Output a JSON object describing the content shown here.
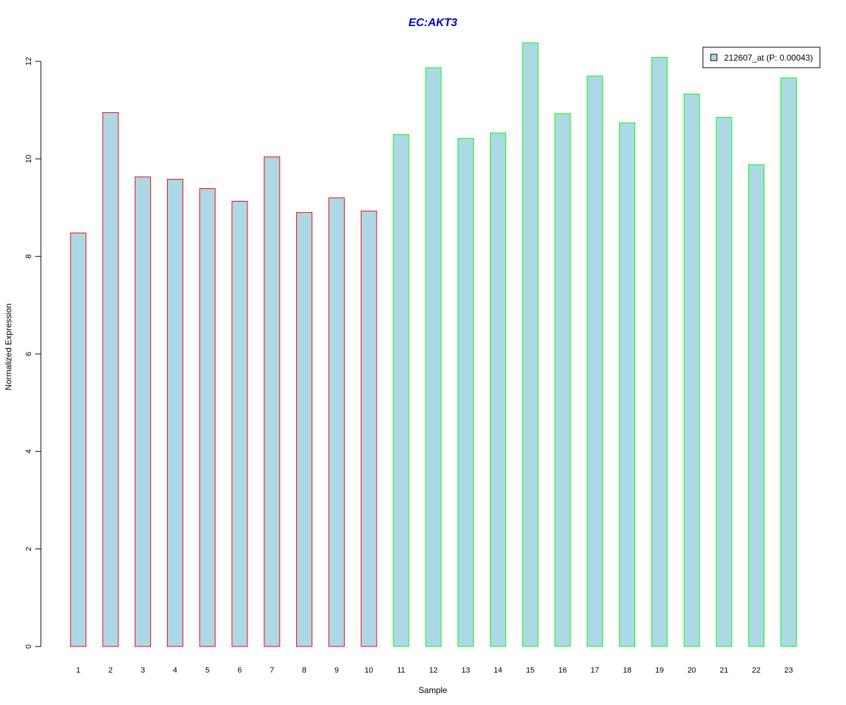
{
  "chart_data": {
    "type": "bar",
    "title": "EC:AKT3",
    "xlabel": "Sample",
    "ylabel": "Normalized Expression",
    "ylim": [
      0,
      12
    ],
    "yticks": [
      0,
      2,
      4,
      6,
      8,
      10,
      12
    ],
    "grid": false,
    "legend": {
      "placement": "top-right",
      "entries": [
        "212607_at (P: 0.00043)"
      ]
    },
    "categories": [
      "1",
      "2",
      "3",
      "4",
      "5",
      "6",
      "7",
      "8",
      "9",
      "10",
      "11",
      "12",
      "13",
      "14",
      "15",
      "16",
      "17",
      "18",
      "19",
      "20",
      "21",
      "22",
      "23"
    ],
    "values": [
      8.48,
      10.95,
      9.63,
      9.58,
      9.39,
      9.13,
      10.04,
      8.9,
      9.2,
      8.93,
      10.5,
      11.87,
      10.42,
      10.53,
      12.38,
      10.93,
      11.7,
      10.74,
      12.08,
      11.33,
      10.85,
      9.88,
      11.66
    ],
    "groups": [
      "red",
      "red",
      "red",
      "red",
      "red",
      "red",
      "red",
      "red",
      "red",
      "red",
      "green",
      "green",
      "green",
      "green",
      "green",
      "green",
      "green",
      "green",
      "green",
      "green",
      "green",
      "green",
      "green"
    ],
    "colors": {
      "fill": "#ADD8E6",
      "red": "#FF0000",
      "green": "#00FF00",
      "title": "#0000CC"
    }
  }
}
